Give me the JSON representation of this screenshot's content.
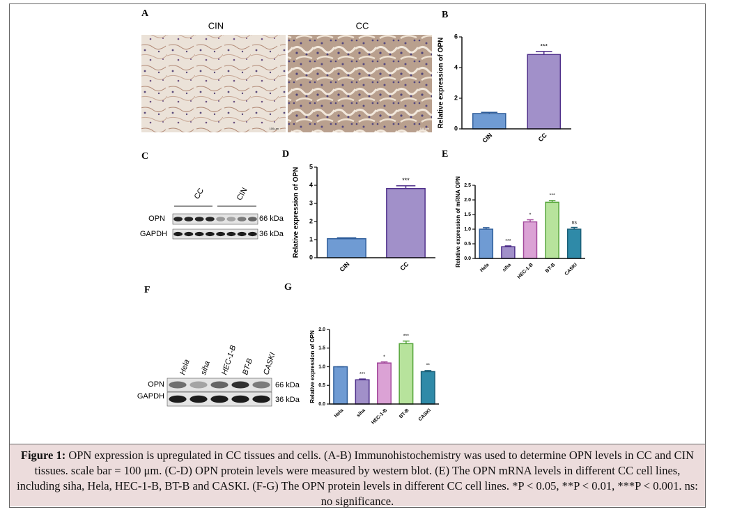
{
  "ihc": {
    "label": "A",
    "titles": [
      "CIN",
      "CC"
    ],
    "scale_labels": [
      "100 μm",
      "100 μm"
    ]
  },
  "blots": [
    {
      "label": "C",
      "groups": [
        "CC",
        "CIN"
      ],
      "rows": [
        "OPN",
        "GAPDH"
      ],
      "sizes": [
        "66 kDa",
        "36 kDa"
      ]
    },
    {
      "label": "F",
      "lanes": [
        "Hela",
        "siha",
        "HEC-1-B",
        "BT-B",
        "CASKI"
      ],
      "rows": [
        "OPN",
        "GAPDH"
      ],
      "sizes": [
        "66 kDa",
        "36 kDa"
      ]
    }
  ],
  "chart_data": [
    {
      "type": "bar",
      "label": "B",
      "ylabel": "Relative expression of OPN",
      "categories": [
        "CIN",
        "CC"
      ],
      "values": [
        1.0,
        4.85
      ],
      "errors": [
        0.08,
        0.2
      ],
      "colors": [
        "#6f9bd3",
        "#a190c9"
      ],
      "edge_colors": [
        "#2e5d9a",
        "#4e2f8a"
      ],
      "annotations": [
        null,
        "***"
      ],
      "ylim": [
        0,
        6
      ],
      "yticks": [
        0,
        2,
        4,
        6
      ]
    },
    {
      "type": "bar",
      "label": "D",
      "ylabel": "Relative expression of OPN",
      "categories": [
        "CIN",
        "CC"
      ],
      "values": [
        1.05,
        3.82
      ],
      "errors": [
        0.05,
        0.15
      ],
      "colors": [
        "#6f9bd3",
        "#a190c9"
      ],
      "edge_colors": [
        "#2e5d9a",
        "#4e2f8a"
      ],
      "annotations": [
        null,
        "***"
      ],
      "ylim": [
        0,
        5
      ],
      "yticks": [
        0,
        1,
        2,
        3,
        4,
        5
      ]
    },
    {
      "type": "bar",
      "label": "E",
      "ylabel": "Relative expression of mRNA OPN",
      "categories": [
        "Hela",
        "siha",
        "HEC-1-B",
        "BT-B",
        "CASKI"
      ],
      "values": [
        1.0,
        0.4,
        1.25,
        1.92,
        1.0
      ],
      "errors": [
        0.05,
        0.03,
        0.07,
        0.06,
        0.06
      ],
      "colors": [
        "#6f9bd3",
        "#a190c9",
        "#dba2d5",
        "#b7e39c",
        "#2f8aa8"
      ],
      "edge_colors": [
        "#2e5d9a",
        "#4e2f8a",
        "#a2489b",
        "#56a53b",
        "#1b5f78"
      ],
      "annotations": [
        null,
        "***",
        "*",
        "***",
        "ns"
      ],
      "ylim": [
        0,
        2.5
      ],
      "yticks": [
        {
          "value": 0,
          "label": "0.0"
        },
        0.5,
        {
          "value": 1,
          "label": "1.0"
        },
        1.5,
        {
          "value": 2,
          "label": "2.0"
        },
        2.5
      ]
    },
    {
      "type": "bar",
      "label": "G",
      "ylabel": "Relative expression of OPN",
      "categories": [
        "Hela",
        "siha",
        "HEC-1-B",
        "BT-B",
        "CASKI"
      ],
      "values": [
        1.0,
        0.65,
        1.1,
        1.62,
        0.87
      ],
      "errors": [
        0.0,
        0.02,
        0.03,
        0.07,
        0.03
      ],
      "colors": [
        "#6f9bd3",
        "#a190c9",
        "#dba2d5",
        "#b7e39c",
        "#2f8aa8"
      ],
      "edge_colors": [
        "#2e5d9a",
        "#4e2f8a",
        "#a2489b",
        "#56a53b",
        "#1b5f78"
      ],
      "annotations": [
        null,
        "***",
        "*",
        "***",
        "**"
      ],
      "ylim": [
        0,
        2
      ],
      "yticks": [
        {
          "value": 0,
          "label": "0.0"
        },
        0.5,
        {
          "value": 1,
          "label": "1.0"
        },
        1.5,
        {
          "value": 2,
          "label": "2.0"
        }
      ]
    }
  ],
  "caption": {
    "lead": "Figure 1:",
    "text": "OPN expression is upregulated in CC tissues and cells. (A-B) Immunohistochemistry was used to determine OPN levels in CC and CIN tissues. scale bar = 100 μm. (C-D) OPN protein levels were measured by western blot. (E) The OPN mRNA levels in different CC cell lines, including siha, Hela, HEC-1-B, BT-B and CASKI. (F-G) The OPN protein levels in different CC cell lines. *P < 0.05, **P < 0.01, ***P < 0.001. ns: no significance."
  }
}
